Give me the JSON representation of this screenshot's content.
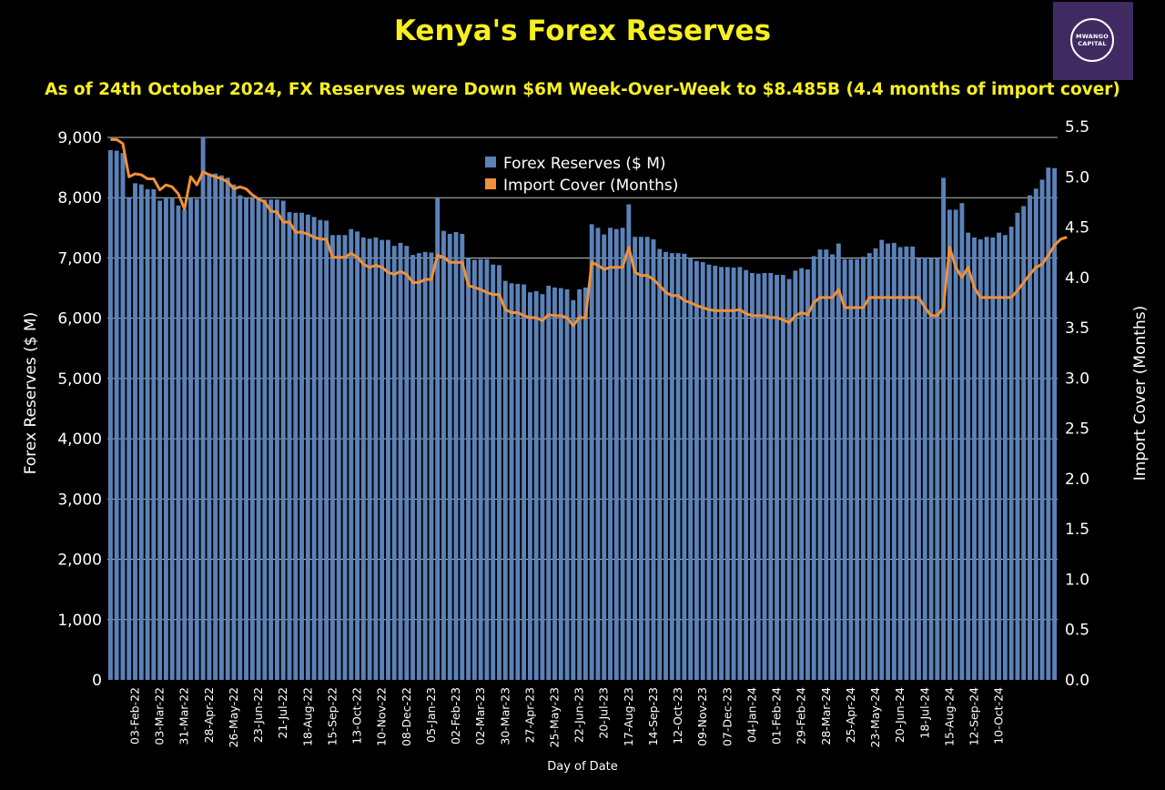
{
  "header": {
    "title": "Kenya's Forex Reserves",
    "subtitle": "As of 24th October 2024, FX Reserves were Down $6M Week-Over-Week to $8.485B (4.4 months of import cover)"
  },
  "logo": {
    "line1": "MWANGO",
    "line2": "CAPITAL"
  },
  "colors": {
    "background": "#000000",
    "title": "#f7f01f",
    "bars": "#5b82b8",
    "line": "#f0903a",
    "grid": "#ffffff",
    "text": "#ffffff"
  },
  "chart_data": {
    "type": "bar",
    "title": "Kenya's Forex Reserves",
    "xlabel": "Day of Date",
    "ylabel": "Forex Reserves ($ M)",
    "y2label": "Import Cover (Months)",
    "ylim": [
      0,
      9000
    ],
    "y2lim": [
      0,
      5.5
    ],
    "yticks": [
      "0",
      "1,000",
      "2,000",
      "3,000",
      "4,000",
      "5,000",
      "6,000",
      "7,000",
      "8,000",
      "9,000"
    ],
    "y2ticks": [
      "0.0",
      "0.5",
      "1.0",
      "1.5",
      "2.0",
      "2.5",
      "3.0",
      "3.5",
      "4.0",
      "4.5",
      "5.0",
      "5.5"
    ],
    "grid": "horizontal",
    "legend_position": "top-center",
    "x_tick_labels": [
      "03-Feb-22",
      "03-Mar-22",
      "31-Mar-22",
      "28-Apr-22",
      "26-May-22",
      "23-Jun-22",
      "21-Jul-22",
      "18-Aug-22",
      "15-Sep-22",
      "13-Oct-22",
      "10-Nov-22",
      "08-Dec-22",
      "05-Jan-23",
      "02-Feb-23",
      "02-Mar-23",
      "30-Mar-23",
      "27-Apr-23",
      "25-May-23",
      "22-Jun-23",
      "20-Jul-23",
      "17-Aug-23",
      "14-Sep-23",
      "12-Oct-23",
      "09-Nov-23",
      "07-Dec-23",
      "04-Jan-24",
      "01-Feb-24",
      "29-Feb-24",
      "28-Mar-24",
      "25-Apr-24",
      "23-May-24",
      "20-Jun-24",
      "18-Jul-24",
      "15-Aug-24",
      "12-Sep-24",
      "10-Oct-24"
    ],
    "series": [
      {
        "name": "Forex Reserves ($ M)",
        "type": "bar",
        "axis": "left",
        "values": [
          8790,
          8780,
          8740,
          8000,
          8240,
          8220,
          8140,
          8140,
          7950,
          8000,
          8000,
          7870,
          7800,
          8000,
          7980,
          9000,
          8400,
          8400,
          8370,
          8330,
          8220,
          8040,
          8000,
          8000,
          8000,
          7970,
          7970,
          7970,
          7950,
          7760,
          7750,
          7750,
          7720,
          7680,
          7630,
          7620,
          7380,
          7380,
          7380,
          7480,
          7440,
          7340,
          7320,
          7340,
          7300,
          7300,
          7200,
          7250,
          7200,
          7050,
          7080,
          7100,
          7090,
          8000,
          7450,
          7400,
          7430,
          7400,
          7000,
          6970,
          6980,
          6980,
          6890,
          6880,
          6620,
          6580,
          6570,
          6560,
          6430,
          6450,
          6400,
          6540,
          6510,
          6500,
          6480,
          6300,
          6480,
          6510,
          7560,
          7500,
          7390,
          7500,
          7480,
          7500,
          7890,
          7350,
          7350,
          7350,
          7310,
          7150,
          7100,
          7080,
          7080,
          7070,
          7000,
          6950,
          6930,
          6890,
          6870,
          6850,
          6850,
          6840,
          6850,
          6800,
          6750,
          6740,
          6750,
          6750,
          6720,
          6720,
          6650,
          6790,
          6830,
          6810,
          7030,
          7140,
          7140,
          7060,
          7240,
          6980,
          6980,
          6980,
          7020,
          7080,
          7160,
          7300,
          7240,
          7250,
          7180,
          7190,
          7190,
          7000,
          7010,
          7000,
          7000,
          8330,
          7800,
          7800,
          7910,
          7420,
          7340,
          7310,
          7350,
          7340,
          7420,
          7380,
          7520,
          7750,
          7860,
          8040,
          8150,
          8300,
          8500,
          8490
        ]
      },
      {
        "name": "Import Cover (Months)",
        "type": "line",
        "axis": "right",
        "values": [
          5.37,
          5.37,
          5.33,
          5.0,
          5.03,
          5.02,
          4.98,
          4.98,
          4.87,
          4.92,
          4.9,
          4.83,
          4.68,
          5.0,
          4.92,
          5.05,
          5.02,
          5.0,
          4.98,
          4.95,
          4.88,
          4.9,
          4.88,
          4.82,
          4.78,
          4.75,
          4.66,
          4.65,
          4.55,
          4.55,
          4.45,
          4.45,
          4.43,
          4.4,
          4.38,
          4.38,
          4.2,
          4.2,
          4.2,
          4.24,
          4.2,
          4.13,
          4.1,
          4.12,
          4.1,
          4.05,
          4.03,
          4.06,
          4.03,
          3.95,
          3.95,
          3.98,
          3.98,
          4.22,
          4.2,
          4.15,
          4.15,
          4.15,
          3.92,
          3.9,
          3.88,
          3.85,
          3.83,
          3.83,
          3.68,
          3.65,
          3.65,
          3.62,
          3.6,
          3.6,
          3.57,
          3.63,
          3.62,
          3.62,
          3.6,
          3.52,
          3.6,
          3.6,
          4.15,
          4.12,
          4.08,
          4.1,
          4.1,
          4.1,
          4.3,
          4.05,
          4.02,
          4.02,
          3.98,
          3.92,
          3.85,
          3.82,
          3.82,
          3.77,
          3.75,
          3.72,
          3.7,
          3.68,
          3.67,
          3.67,
          3.67,
          3.67,
          3.68,
          3.64,
          3.62,
          3.62,
          3.62,
          3.6,
          3.6,
          3.58,
          3.55,
          3.62,
          3.65,
          3.63,
          3.75,
          3.8,
          3.8,
          3.8,
          3.88,
          3.7,
          3.7,
          3.7,
          3.7,
          3.8,
          3.8,
          3.8,
          3.8,
          3.8,
          3.8,
          3.8,
          3.8,
          3.8,
          3.7,
          3.62,
          3.62,
          3.7,
          4.3,
          4.1,
          4.0,
          4.1,
          3.9,
          3.8,
          3.8,
          3.8,
          3.8,
          3.8,
          3.8,
          3.87,
          3.95,
          4.03,
          4.1,
          4.13,
          4.22,
          4.32,
          4.38,
          4.4
        ]
      }
    ]
  }
}
